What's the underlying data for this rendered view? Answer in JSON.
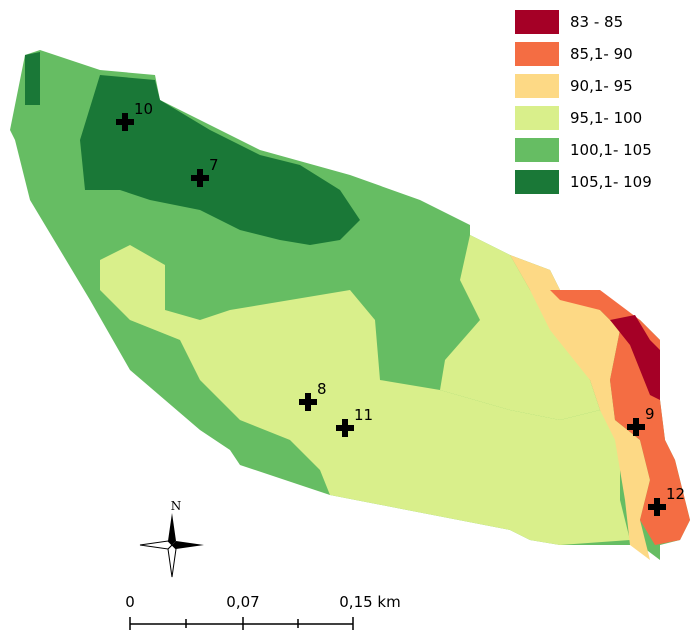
{
  "legend": {
    "items": [
      {
        "label": "83 - 85",
        "color": "#a50026"
      },
      {
        "label": "85,1- 90",
        "color": "#f46d43"
      },
      {
        "label": "90,1- 95",
        "color": "#fdd985"
      },
      {
        "label": "95,1- 100",
        "color": "#d9ef8b"
      },
      {
        "label": "100,1- 105",
        "color": "#66bd63"
      },
      {
        "label": "105,1- 109",
        "color": "#1a7837"
      }
    ]
  },
  "points": [
    {
      "label": "10"
    },
    {
      "label": "7"
    },
    {
      "label": "8"
    },
    {
      "label": "11"
    },
    {
      "label": "9"
    },
    {
      "label": "12"
    }
  ],
  "north_arrow": {
    "label": "N"
  },
  "scale_bar": {
    "labels": [
      "0",
      "0,07",
      "0,15 km"
    ]
  }
}
